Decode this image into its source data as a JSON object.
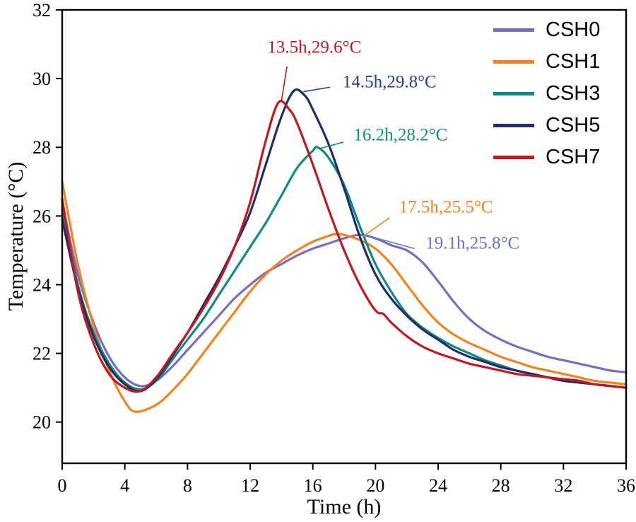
{
  "chart_data": {
    "type": "line",
    "title": "",
    "xlabel": "Time (h)",
    "ylabel": "Temperature (°C)",
    "xlim": [
      0,
      36
    ],
    "ylim": [
      18.8,
      32
    ],
    "x_ticks": [
      0,
      4,
      8,
      12,
      16,
      20,
      24,
      28,
      32,
      36
    ],
    "y_ticks": [
      20,
      22,
      24,
      26,
      28,
      30,
      32
    ],
    "grid": false,
    "legend_position": "top-right",
    "series": [
      {
        "name": "CSH0",
        "color": "#7D6BBE",
        "peak": {
          "time_h": 19.1,
          "temp_c": 25.8
        },
        "points": [
          [
            0,
            26.4
          ],
          [
            1,
            24.3
          ],
          [
            2,
            22.9
          ],
          [
            3,
            21.9
          ],
          [
            4,
            21.3
          ],
          [
            5,
            21.05
          ],
          [
            6,
            21.2
          ],
          [
            7,
            21.6
          ],
          [
            8,
            22.1
          ],
          [
            9,
            22.6
          ],
          [
            10,
            23.1
          ],
          [
            11,
            23.6
          ],
          [
            12,
            24.0
          ],
          [
            13,
            24.35
          ],
          [
            14,
            24.6
          ],
          [
            15,
            24.85
          ],
          [
            16,
            25.05
          ],
          [
            17,
            25.2
          ],
          [
            18,
            25.35
          ],
          [
            19,
            25.45
          ],
          [
            20,
            25.35
          ],
          [
            21,
            25.15
          ],
          [
            22,
            25.0
          ],
          [
            23,
            24.65
          ],
          [
            24,
            24.1
          ],
          [
            25,
            23.5
          ],
          [
            26,
            23.0
          ],
          [
            27,
            22.65
          ],
          [
            28,
            22.4
          ],
          [
            29,
            22.2
          ],
          [
            30,
            22.05
          ],
          [
            31,
            21.9
          ],
          [
            32,
            21.8
          ],
          [
            33,
            21.7
          ],
          [
            34,
            21.6
          ],
          [
            35,
            21.5
          ],
          [
            36,
            21.45
          ]
        ]
      },
      {
        "name": "CSH1",
        "color": "#F58220",
        "peak": {
          "time_h": 17.5,
          "temp_c": 25.5
        },
        "points": [
          [
            0,
            27.0
          ],
          [
            1,
            24.6
          ],
          [
            2,
            22.8
          ],
          [
            3,
            21.5
          ],
          [
            4,
            20.6
          ],
          [
            4.7,
            20.3
          ],
          [
            6,
            20.5
          ],
          [
            7,
            20.9
          ],
          [
            8,
            21.4
          ],
          [
            9,
            22.0
          ],
          [
            10,
            22.6
          ],
          [
            11,
            23.2
          ],
          [
            12,
            23.8
          ],
          [
            13,
            24.3
          ],
          [
            14,
            24.7
          ],
          [
            15,
            25.0
          ],
          [
            16,
            25.25
          ],
          [
            17,
            25.42
          ],
          [
            17.5,
            25.48
          ],
          [
            18,
            25.45
          ],
          [
            19,
            25.3
          ],
          [
            20,
            25.05
          ],
          [
            21,
            24.6
          ],
          [
            22,
            24.0
          ],
          [
            23,
            23.4
          ],
          [
            24,
            22.9
          ],
          [
            25,
            22.55
          ],
          [
            26,
            22.3
          ],
          [
            27,
            22.1
          ],
          [
            28,
            21.9
          ],
          [
            29,
            21.75
          ],
          [
            30,
            21.6
          ],
          [
            31,
            21.5
          ],
          [
            32,
            21.4
          ],
          [
            33,
            21.3
          ],
          [
            34,
            21.2
          ],
          [
            35,
            21.15
          ],
          [
            36,
            21.1
          ]
        ]
      },
      {
        "name": "CSH3",
        "color": "#0E8B82",
        "peak": {
          "time_h": 16.2,
          "temp_c": 28.2
        },
        "points": [
          [
            0,
            26.2
          ],
          [
            1,
            24.0
          ],
          [
            2,
            22.6
          ],
          [
            3,
            21.7
          ],
          [
            4,
            21.15
          ],
          [
            5,
            20.95
          ],
          [
            6,
            21.2
          ],
          [
            7,
            21.8
          ],
          [
            8,
            22.4
          ],
          [
            9,
            23.0
          ],
          [
            10,
            23.7
          ],
          [
            11,
            24.4
          ],
          [
            12,
            25.1
          ],
          [
            13,
            25.8
          ],
          [
            14,
            26.6
          ],
          [
            15,
            27.4
          ],
          [
            16,
            27.9
          ],
          [
            16.3,
            28.0
          ],
          [
            17,
            27.7
          ],
          [
            18,
            26.9
          ],
          [
            19,
            25.7
          ],
          [
            20,
            24.6
          ],
          [
            21,
            23.8
          ],
          [
            22,
            23.15
          ],
          [
            23,
            22.75
          ],
          [
            24,
            22.45
          ],
          [
            25,
            22.2
          ],
          [
            26,
            22.0
          ],
          [
            27,
            21.8
          ],
          [
            28,
            21.65
          ],
          [
            29,
            21.5
          ],
          [
            30,
            21.4
          ],
          [
            31,
            21.3
          ],
          [
            32,
            21.25
          ],
          [
            33,
            21.2
          ],
          [
            34,
            21.1
          ],
          [
            35,
            21.05
          ],
          [
            36,
            21.0
          ]
        ]
      },
      {
        "name": "CSH5",
        "color": "#232C66",
        "peak": {
          "time_h": 14.5,
          "temp_c": 29.8
        },
        "points": [
          [
            0,
            25.9
          ],
          [
            1,
            23.9
          ],
          [
            2,
            22.5
          ],
          [
            3,
            21.6
          ],
          [
            4,
            21.1
          ],
          [
            5,
            20.9
          ],
          [
            6,
            21.25
          ],
          [
            7,
            21.9
          ],
          [
            8,
            22.6
          ],
          [
            9,
            23.4
          ],
          [
            10,
            24.2
          ],
          [
            11,
            25.1
          ],
          [
            12,
            26.1
          ],
          [
            13,
            27.5
          ],
          [
            14,
            28.9
          ],
          [
            14.8,
            29.65
          ],
          [
            15.5,
            29.5
          ],
          [
            16,
            29.1
          ],
          [
            17,
            28.1
          ],
          [
            18,
            26.8
          ],
          [
            19,
            25.4
          ],
          [
            20,
            24.3
          ],
          [
            21,
            23.6
          ],
          [
            22,
            23.1
          ],
          [
            23,
            22.7
          ],
          [
            24,
            22.4
          ],
          [
            25,
            22.1
          ],
          [
            26,
            21.9
          ],
          [
            27,
            21.75
          ],
          [
            28,
            21.6
          ],
          [
            29,
            21.5
          ],
          [
            30,
            21.4
          ],
          [
            31,
            21.3
          ],
          [
            32,
            21.2
          ],
          [
            33,
            21.15
          ],
          [
            34,
            21.1
          ],
          [
            35,
            21.05
          ],
          [
            36,
            21.0
          ]
        ]
      },
      {
        "name": "CSH7",
        "color": "#C2181F",
        "peak": {
          "time_h": 13.5,
          "temp_c": 29.6
        },
        "points": [
          [
            0,
            26.5
          ],
          [
            1,
            23.8
          ],
          [
            2,
            22.3
          ],
          [
            3,
            21.4
          ],
          [
            4,
            21.0
          ],
          [
            5,
            20.9
          ],
          [
            6,
            21.3
          ],
          [
            7,
            21.95
          ],
          [
            8,
            22.6
          ],
          [
            9,
            23.3
          ],
          [
            10,
            24.1
          ],
          [
            11,
            25.1
          ],
          [
            12,
            26.4
          ],
          [
            13,
            28.2
          ],
          [
            13.8,
            29.3
          ],
          [
            14.5,
            29.1
          ],
          [
            15,
            28.7
          ],
          [
            16,
            27.5
          ],
          [
            17,
            26.2
          ],
          [
            18,
            25.0
          ],
          [
            19,
            24.0
          ],
          [
            20,
            23.25
          ],
          [
            20.5,
            23.15
          ],
          [
            21,
            22.9
          ],
          [
            22,
            22.5
          ],
          [
            23,
            22.2
          ],
          [
            24,
            22.0
          ],
          [
            25,
            21.85
          ],
          [
            26,
            21.7
          ],
          [
            27,
            21.6
          ],
          [
            28,
            21.5
          ],
          [
            29,
            21.4
          ],
          [
            30,
            21.35
          ],
          [
            31,
            21.3
          ],
          [
            32,
            21.25
          ],
          [
            33,
            21.2
          ],
          [
            34,
            21.1
          ],
          [
            35,
            21.05
          ],
          [
            36,
            21.0
          ]
        ]
      }
    ],
    "annotations": [
      {
        "series": "CSH7",
        "label": "13.5h,29.6°C",
        "color": "#C2181F",
        "text_x": 16.1,
        "text_y": 30.75,
        "line": [
          [
            14.35,
            30.35
          ],
          [
            14.0,
            29.35
          ]
        ]
      },
      {
        "series": "CSH5",
        "label": "14.5h,29.8°C",
        "color": "#2B3A8C",
        "text_x": 20.9,
        "text_y": 29.75,
        "line": [
          [
            17.1,
            29.75
          ],
          [
            15.4,
            29.62
          ]
        ]
      },
      {
        "series": "CSH3",
        "label": "16.2h,28.2°C",
        "color": "#0E8B82",
        "text_x": 21.6,
        "text_y": 28.2,
        "line": [
          [
            17.95,
            28.15
          ],
          [
            16.5,
            27.97
          ]
        ]
      },
      {
        "series": "CSH1",
        "label": "17.5h,25.5°C",
        "color": "#F58220",
        "text_x": 24.5,
        "text_y": 26.1,
        "line": [
          [
            20.9,
            25.95
          ],
          [
            19.2,
            25.4
          ]
        ]
      },
      {
        "series": "CSH0",
        "label": "19.1h,25.8°C",
        "color": "#6676C4",
        "text_x": 26.2,
        "text_y": 25.05,
        "line": [
          [
            22.5,
            25.05
          ],
          [
            19.7,
            25.4
          ]
        ]
      }
    ]
  }
}
